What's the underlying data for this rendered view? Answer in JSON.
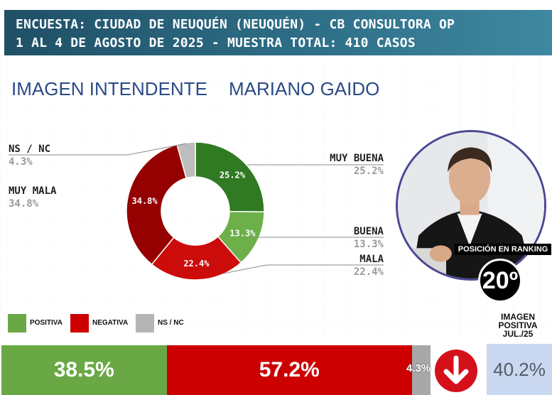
{
  "header": {
    "line1": "ENCUESTA: CIUDAD DE NEUQUÉN (NEUQUÉN) - CB CONSULTORA OP",
    "line2": "1 AL 4 DE AGOSTO DE 2025 - MUESTRA TOTAL: 410 CASOS"
  },
  "titles": {
    "left": "IMAGEN INTENDENTE",
    "right": "MARIANO GAIDO"
  },
  "chart_data": {
    "type": "pie",
    "variant": "donut",
    "slices": [
      {
        "label": "MUY BUENA",
        "value": 25.2,
        "display": "25.2%",
        "color": "#2f7a22"
      },
      {
        "label": "BUENA",
        "value": 13.3,
        "display": "13.3%",
        "color": "#6db04a"
      },
      {
        "label": "MALA",
        "value": 22.4,
        "display": "22.4%",
        "color": "#cc0b0b"
      },
      {
        "label": "MUY MALA",
        "value": 34.8,
        "display": "34.8%",
        "color": "#950101"
      },
      {
        "label": "NS / NC",
        "value": 4.3,
        "display": "4.3%",
        "color": "#bdbdbd"
      }
    ],
    "legend": [
      {
        "label": "POSITIVA",
        "color": "#6aa845"
      },
      {
        "label": "NEGATIVA",
        "color": "#cc0000"
      },
      {
        "label": "NS / NC",
        "color": "#b5b5b5"
      }
    ],
    "summary_bar": [
      {
        "label": "POSITIVA",
        "value": 38.5,
        "display": "38.5%",
        "color": "#6aa845"
      },
      {
        "label": "NEGATIVA",
        "value": 57.2,
        "display": "57.2%",
        "color": "#cc0000"
      },
      {
        "label": "NS / NC",
        "value": 4.3,
        "display": "4.3%",
        "color": "#a8a8a8"
      }
    ]
  },
  "ranking": {
    "label": "POSICIÓN EN RANKING",
    "position": "20º"
  },
  "previous": {
    "label_line1": "IMAGEN",
    "label_line2": "POSITIVA",
    "label_line3": "JUL./25",
    "value": "40.2%"
  },
  "trend": {
    "direction": "down",
    "icon": "down-arrow-icon"
  }
}
